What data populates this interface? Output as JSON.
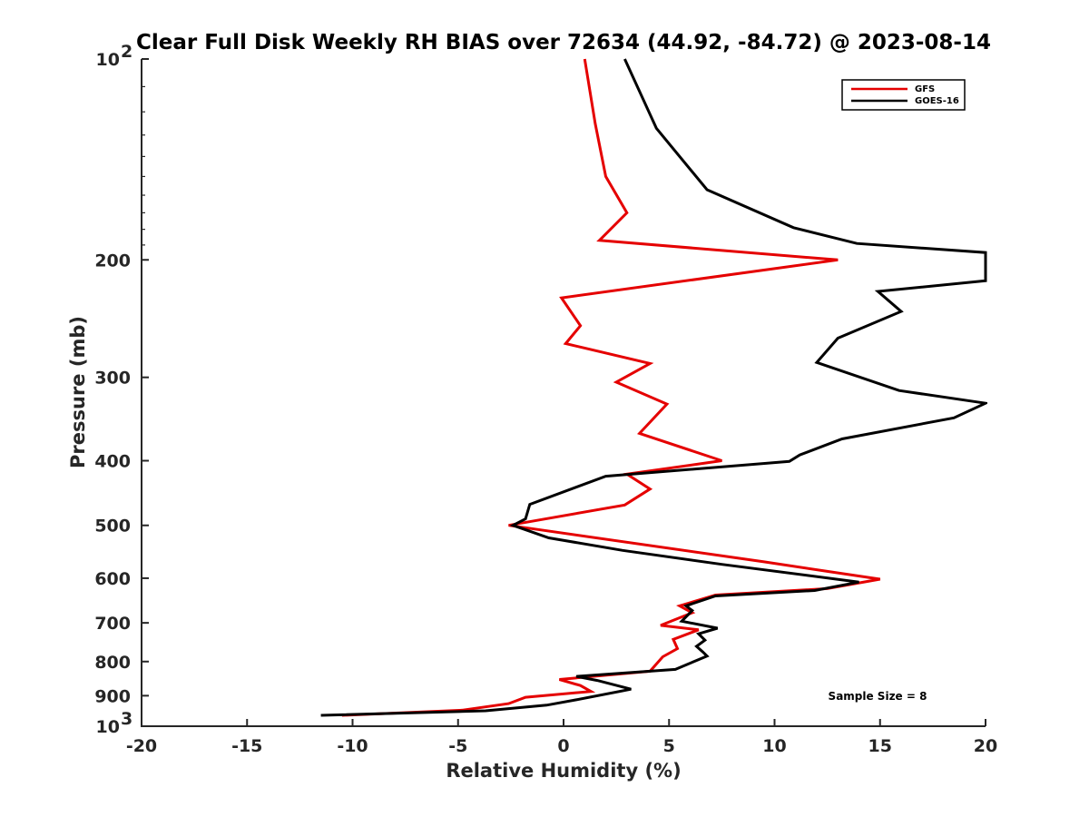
{
  "chart_data": {
    "type": "line",
    "title": "Clear Full Disk Weekly RH BIAS over 72634 (44.92, -84.72) @ 2023-08-14",
    "xlabel": "Relative Humidity (%)",
    "ylabel": "Pressure (mb)",
    "xlim": [
      -20,
      20
    ],
    "ylim": [
      100,
      1000
    ],
    "y_scale": "log",
    "y_reversed": true,
    "grid": false,
    "x_ticks": [
      -20,
      -15,
      -10,
      -5,
      0,
      5,
      10,
      15,
      20
    ],
    "x_tick_labels": [
      "-20",
      "-15",
      "-10",
      "-5",
      "0",
      "5",
      "10",
      "15",
      "20"
    ],
    "y_ticks": [
      200,
      300,
      400,
      500,
      600,
      700,
      800,
      900
    ],
    "y_tick_labels": [
      "200",
      "300",
      "400",
      "500",
      "600",
      "700",
      "800",
      "900"
    ],
    "y_end_labels": {
      "top": {
        "base": "10",
        "exp": "2"
      },
      "bottom": {
        "base": "10",
        "exp": "3"
      }
    },
    "legend_position": "top-right",
    "annotation": "Sample Size = 8",
    "series": [
      {
        "name": "GFS",
        "color": "#e50000",
        "points": [
          [
            1.0,
            100
          ],
          [
            1.5,
            125
          ],
          [
            2.0,
            150
          ],
          [
            3.0,
            170
          ],
          [
            1.7,
            187
          ],
          [
            13.0,
            200
          ],
          [
            -0.1,
            228
          ],
          [
            0.8,
            251
          ],
          [
            0.1,
            267
          ],
          [
            4.1,
            286
          ],
          [
            2.5,
            305
          ],
          [
            4.9,
            329
          ],
          [
            3.6,
            364
          ],
          [
            7.5,
            400
          ],
          [
            3.0,
            419
          ],
          [
            4.1,
            441
          ],
          [
            2.9,
            466
          ],
          [
            -2.6,
            500
          ],
          [
            9.5,
            567
          ],
          [
            12.5,
            586
          ],
          [
            15.0,
            602
          ],
          [
            12.5,
            622
          ],
          [
            7.2,
            636
          ],
          [
            5.5,
            660
          ],
          [
            6.1,
            676
          ],
          [
            4.6,
            706
          ],
          [
            6.4,
            717
          ],
          [
            5.2,
            741
          ],
          [
            5.4,
            765
          ],
          [
            4.7,
            787
          ],
          [
            4.1,
            827
          ],
          [
            -0.2,
            851
          ],
          [
            0.8,
            869
          ],
          [
            1.3,
            887
          ],
          [
            -1.8,
            905
          ],
          [
            -2.6,
            925
          ],
          [
            -4.8,
            946
          ],
          [
            -10.5,
            963
          ]
        ]
      },
      {
        "name": "GOES-16",
        "color": "#000000",
        "points": [
          [
            2.9,
            100
          ],
          [
            4.4,
            127
          ],
          [
            6.8,
            157
          ],
          [
            10.9,
            179
          ],
          [
            13.9,
            189
          ],
          [
            20.0,
            195
          ],
          [
            20.0,
            215
          ],
          [
            14.9,
            223
          ],
          [
            16.0,
            239
          ],
          [
            13.0,
            262
          ],
          [
            12.0,
            285
          ],
          [
            15.9,
            314
          ],
          [
            20.0,
            328
          ],
          [
            18.5,
            345
          ],
          [
            13.2,
            371
          ],
          [
            11.2,
            392
          ],
          [
            10.7,
            401
          ],
          [
            2.0,
            422
          ],
          [
            -1.6,
            465
          ],
          [
            -1.8,
            489
          ],
          [
            -2.4,
            500
          ],
          [
            -0.7,
            522
          ],
          [
            2.8,
            545
          ],
          [
            7.5,
            572
          ],
          [
            14.0,
            608
          ],
          [
            11.9,
            626
          ],
          [
            7.2,
            638
          ],
          [
            5.8,
            660
          ],
          [
            6.1,
            671
          ],
          [
            5.6,
            696
          ],
          [
            7.3,
            713
          ],
          [
            6.4,
            727
          ],
          [
            6.7,
            743
          ],
          [
            6.3,
            759
          ],
          [
            6.6,
            774
          ],
          [
            6.8,
            785
          ],
          [
            5.3,
            822
          ],
          [
            0.6,
            842
          ],
          [
            1.6,
            854
          ],
          [
            3.2,
            880
          ],
          [
            0.6,
            913
          ],
          [
            -0.8,
            930
          ],
          [
            -3.7,
            948
          ],
          [
            -11.5,
            963
          ]
        ]
      }
    ]
  }
}
